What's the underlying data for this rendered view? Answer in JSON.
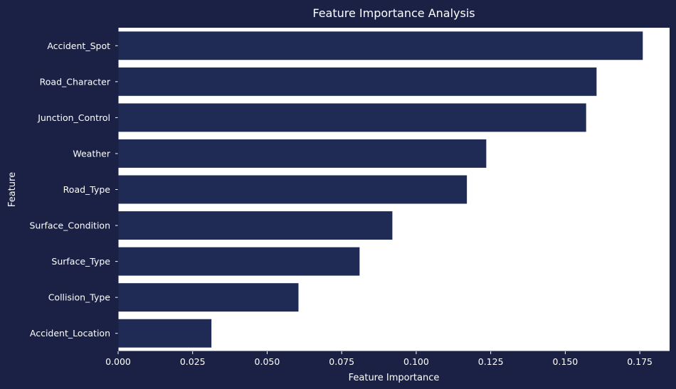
{
  "chart_data": {
    "type": "bar",
    "orientation": "horizontal",
    "title": "Feature Importance Analysis",
    "xlabel": "Feature Importance",
    "ylabel": "Feature",
    "categories": [
      "Accident_Spot",
      "Road_Character",
      "Junction_Control",
      "Weather",
      "Road_Type",
      "Surface_Condition",
      "Surface_Type",
      "Collision_Type",
      "Accident_Location"
    ],
    "values": [
      0.176,
      0.1605,
      0.157,
      0.1235,
      0.117,
      0.092,
      0.081,
      0.0605,
      0.0313
    ],
    "xlim": [
      0,
      0.185
    ],
    "xticks": [
      0.0,
      0.025,
      0.05,
      0.075,
      0.1,
      0.125,
      0.15,
      0.175
    ],
    "xtick_labels": [
      "0.000",
      "0.025",
      "0.050",
      "0.075",
      "0.100",
      "0.125",
      "0.150",
      "0.175"
    ],
    "grid": false,
    "colors": {
      "background": "#1a2145",
      "plot_area": "#ffffff",
      "bar": "#1f2a55",
      "text": "#ffffff",
      "axis": "#1a2145"
    }
  }
}
